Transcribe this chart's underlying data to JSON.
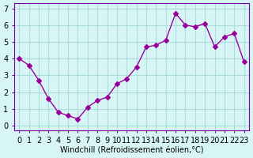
{
  "x": [
    0,
    1,
    2,
    3,
    4,
    5,
    6,
    7,
    8,
    9,
    10,
    11,
    12,
    13,
    14,
    15,
    16,
    17,
    18,
    19,
    20,
    21,
    22,
    23
  ],
  "y": [
    4.0,
    3.6,
    2.7,
    1.6,
    0.8,
    0.6,
    0.4,
    1.1,
    1.5,
    1.7,
    2.5,
    2.8,
    3.5,
    4.7,
    4.8,
    5.1,
    6.7,
    6.0,
    5.9,
    6.1,
    4.7,
    5.3,
    5.5,
    3.8
  ],
  "line_color": "#990099",
  "marker": "D",
  "marker_size": 3,
  "bg_color": "#d8f5f5",
  "grid_color": "#aadddd",
  "xlabel": "Windchill (Refroidissement éolien,°C)",
  "ylim": [
    -0.3,
    7.3
  ],
  "xlim": [
    -0.5,
    23.5
  ],
  "yticks": [
    0,
    1,
    2,
    3,
    4,
    5,
    6,
    7
  ],
  "xtick_labels": [
    "0",
    "1",
    "2",
    "3",
    "4",
    "5",
    "6",
    "7",
    "8",
    "9",
    "10",
    "11",
    "12",
    "13",
    "14",
    "15",
    "16",
    "17",
    "18",
    "19",
    "20",
    "21",
    "22",
    "23"
  ],
  "xlabel_fontsize": 7,
  "tick_fontsize": 7,
  "spine_color": "#7700aa"
}
